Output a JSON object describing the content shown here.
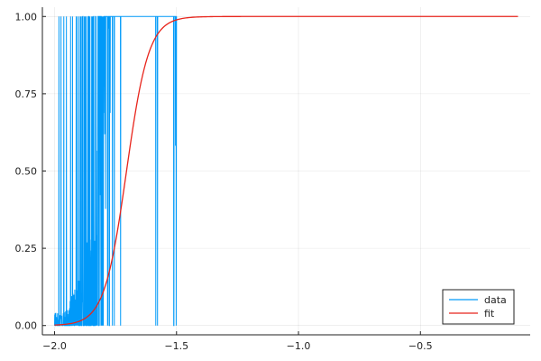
{
  "chart_data": {
    "type": "line",
    "title": "",
    "xlabel": "",
    "ylabel": "",
    "xlim": [
      -2.05,
      -0.05
    ],
    "ylim": [
      -0.03,
      1.03
    ],
    "x_ticks": [
      -2.0,
      -1.5,
      -1.0,
      -0.5
    ],
    "x_tick_labels": [
      "−2.0",
      "−1.5",
      "−1.0",
      "−0.5"
    ],
    "y_ticks": [
      0.0,
      0.25,
      0.5,
      0.75,
      1.0
    ],
    "y_tick_labels": [
      "0.00",
      "0.25",
      "0.50",
      "0.75",
      "1.00"
    ],
    "grid": true,
    "legend_position": "bottom-right",
    "series": [
      {
        "name": "data",
        "color": "#009af9",
        "style": "noisy-binary",
        "x_range": [
          -2.0,
          -1.5
        ],
        "x": [
          -1.96,
          -1.94,
          -1.92,
          -1.9,
          -1.88,
          -1.86,
          -1.84,
          -1.82,
          -1.8,
          -1.78,
          -1.76,
          -1.74,
          -1.72,
          -1.7,
          -1.68,
          -1.66,
          -1.64,
          -1.62,
          -1.6,
          -1.58,
          -1.56,
          -1.54,
          -1.52,
          -1.5
        ],
        "y": [
          0.03,
          0.05,
          0.08,
          0.1,
          0.15,
          0.2,
          0.3,
          0.45,
          0.6,
          0.75,
          0.85,
          0.9,
          0.95,
          1.0,
          1.0,
          1.0,
          1.0,
          1.0,
          1.0,
          0.9,
          1.0,
          1.0,
          1.0,
          0.67
        ]
      },
      {
        "name": "fit",
        "color": "#e8251c",
        "style": "logistic",
        "x_range": [
          -2.0,
          -0.1
        ],
        "midpoint": -1.705,
        "steepness": 22
      }
    ]
  }
}
